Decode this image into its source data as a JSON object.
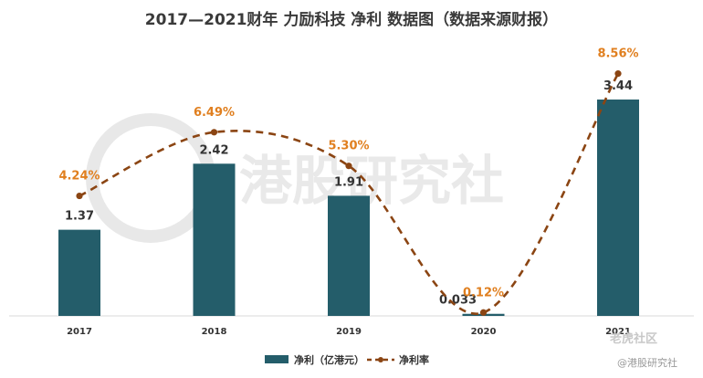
{
  "title": "2017—2021财年 力励科技 净利 数据图（数据来源财报）",
  "watermark": {
    "main": "港股研究社",
    "corner": "老虎社区",
    "credit": "@港股研究社"
  },
  "colors": {
    "bar": "#245d6a",
    "line": "#8b4513",
    "rate_text": "#e07f1f"
  },
  "chart_data": {
    "type": "bar",
    "categories": [
      "2017",
      "2018",
      "2019",
      "2020",
      "2021"
    ],
    "series": [
      {
        "name": "净利（亿港元）",
        "kind": "bar",
        "values": [
          1.37,
          2.42,
          1.91,
          0.033,
          3.44
        ],
        "labels": [
          "1.37",
          "2.42",
          "1.91",
          "0.033",
          "3.44"
        ]
      },
      {
        "name": "净利率",
        "kind": "line",
        "values": [
          4.24,
          6.49,
          5.3,
          0.12,
          8.56
        ],
        "labels": [
          "4.24%",
          "6.49%",
          "5.30%",
          "0.12%",
          "8.56%"
        ]
      }
    ],
    "ylim": [
      0,
      4.5
    ],
    "y2lim": [
      0,
      10
    ],
    "legend": "bottom-center"
  }
}
